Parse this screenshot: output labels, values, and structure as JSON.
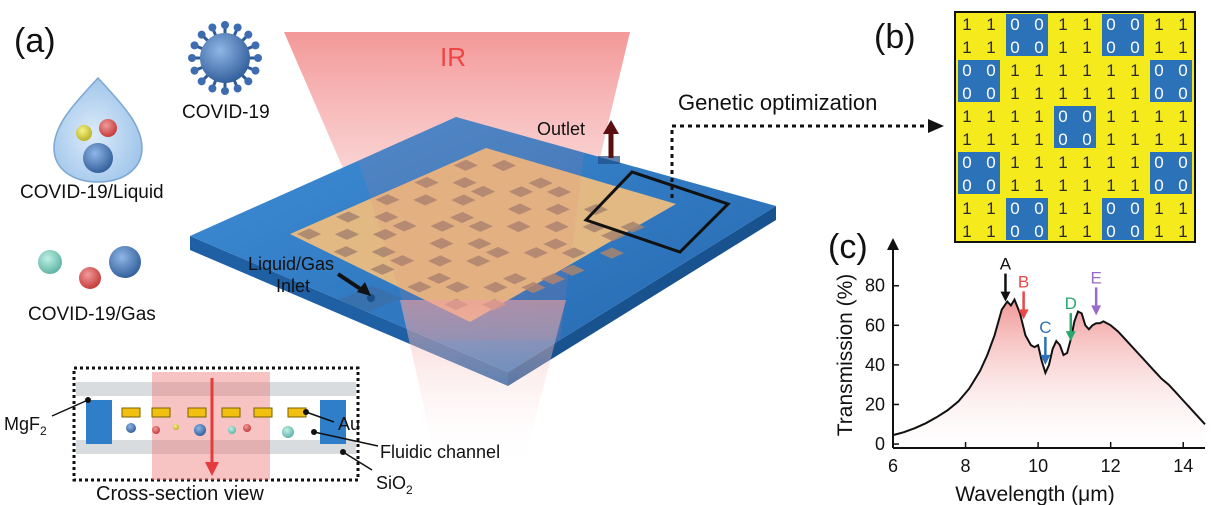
{
  "panel_a": {
    "tag": "(a)",
    "ir_label": "IR",
    "virus_label": "COVID-19",
    "liquid_label": "COVID-19/Liquid",
    "gas_label": "COVID-19/Gas",
    "outlet_label": "Outlet",
    "inlet_line1": "Liquid/Gas",
    "inlet_line2": "Inlet",
    "genetic_label": "Genetic optimization",
    "cross_section": {
      "title": "Cross-section view",
      "au": "Au",
      "fluidic": "Fluidic channel",
      "sio2": "SiO",
      "sio2_sub": "2",
      "mgf2": "MgF",
      "mgf2_sub": "2"
    }
  },
  "panel_b": {
    "tag": "(b)",
    "grid": [
      [
        1,
        1,
        0,
        0,
        1,
        1,
        0,
        0,
        1,
        1
      ],
      [
        1,
        1,
        0,
        0,
        1,
        1,
        0,
        0,
        1,
        1
      ],
      [
        0,
        0,
        1,
        1,
        1,
        1,
        1,
        1,
        0,
        0
      ],
      [
        0,
        0,
        1,
        1,
        1,
        1,
        1,
        1,
        0,
        0
      ],
      [
        1,
        1,
        1,
        1,
        0,
        0,
        1,
        1,
        1,
        1
      ],
      [
        1,
        1,
        1,
        1,
        0,
        0,
        1,
        1,
        1,
        1
      ],
      [
        0,
        0,
        1,
        1,
        1,
        1,
        1,
        1,
        0,
        0
      ],
      [
        0,
        0,
        1,
        1,
        1,
        1,
        1,
        1,
        0,
        0
      ],
      [
        1,
        1,
        0,
        0,
        1,
        1,
        0,
        0,
        1,
        1
      ],
      [
        1,
        1,
        0,
        0,
        1,
        1,
        0,
        0,
        1,
        1
      ]
    ],
    "colors": {
      "one": "#f5ea1c",
      "zero": "#2b72b8"
    }
  },
  "panel_c": {
    "tag": "(c)"
  },
  "chart_data": {
    "type": "line",
    "xlabel": "Wavelength (μm)",
    "ylabel": "Transmission (%)",
    "xlim": [
      6,
      14.6
    ],
    "ylim": [
      -2,
      92
    ],
    "xticks": [
      "6",
      "8",
      "10",
      "12",
      "14"
    ],
    "yticks": [
      "0",
      "20",
      "40",
      "60",
      "80"
    ],
    "series": [
      {
        "x": [
          6.0,
          6.3,
          6.6,
          6.9,
          7.2,
          7.5,
          7.8,
          8.1,
          8.4,
          8.6,
          8.8,
          9.0,
          9.15,
          9.25,
          9.35,
          9.5,
          9.65,
          9.8,
          9.9,
          10.0,
          10.1,
          10.2,
          10.3,
          10.4,
          10.5,
          10.6,
          10.7,
          10.8,
          10.9,
          11.0,
          11.1,
          11.2,
          11.3,
          11.4,
          11.5,
          11.6,
          11.7,
          11.8,
          11.9,
          12.0,
          12.2,
          12.4,
          12.6,
          12.8,
          13.0,
          13.2,
          13.4,
          13.6,
          13.8,
          14.0,
          14.2,
          14.4,
          14.6
        ],
        "y": [
          4.5,
          6,
          8,
          10.5,
          13.5,
          17,
          21.5,
          28,
          37,
          45,
          55,
          68,
          72,
          70,
          73,
          66,
          55,
          50,
          49,
          50,
          42,
          36,
          40,
          48,
          52,
          50,
          45,
          46,
          53,
          62,
          67,
          66,
          60,
          58,
          60,
          61,
          61,
          62,
          61,
          60,
          57,
          53,
          49,
          45,
          41,
          37,
          33,
          30,
          26,
          22,
          18,
          14,
          10
        ]
      }
    ],
    "markers": [
      {
        "label": "A",
        "x": 9.1,
        "y_tip": 72,
        "color": "#111111"
      },
      {
        "label": "B",
        "x": 9.6,
        "y_tip": 63,
        "color": "#e84848"
      },
      {
        "label": "C",
        "x": 10.2,
        "y_tip": 40,
        "color": "#2b72b8"
      },
      {
        "label": "D",
        "x": 10.9,
        "y_tip": 52,
        "color": "#2aa66e"
      },
      {
        "label": "E",
        "x": 11.6,
        "y_tip": 65,
        "color": "#9a6ac8"
      }
    ]
  },
  "colors": {
    "substrate": "#2f7ec9",
    "gold": "#e3b982",
    "ir_beam": "#f06a6a",
    "fill_pink": "#f4a3a3"
  }
}
